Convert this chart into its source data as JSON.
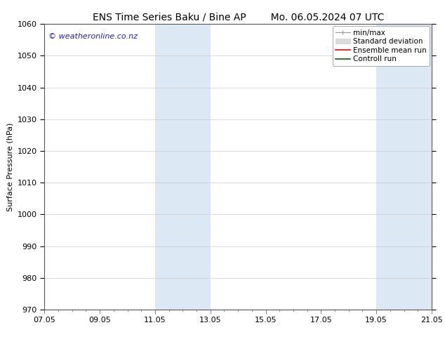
{
  "title_left": "ENS Time Series Baku / Bine AP",
  "title_right": "Mo. 06.05.2024 07 UTC",
  "ylabel": "Surface Pressure (hPa)",
  "ylim": [
    970,
    1060
  ],
  "yticks": [
    970,
    980,
    990,
    1000,
    1010,
    1020,
    1030,
    1040,
    1050,
    1060
  ],
  "xtick_labels": [
    "07.05",
    "09.05",
    "11.05",
    "13.05",
    "15.05",
    "17.05",
    "19.05",
    "21.05"
  ],
  "xtick_positions": [
    0,
    2,
    4,
    6,
    8,
    10,
    12,
    14
  ],
  "shaded_regions": [
    {
      "xstart": 4,
      "xend": 6
    },
    {
      "xstart": 12,
      "xend": 14
    }
  ],
  "shaded_color": "#dce9f5",
  "watermark": "© weatheronline.co.nz",
  "watermark_color": "#1a1aff",
  "bg_color": "#ffffff",
  "plot_bg_color": "#ffffff",
  "grid_color": "#cccccc",
  "legend_entries": [
    {
      "label": "min/max",
      "color": "#aaaaaa"
    },
    {
      "label": "Standard deviation",
      "color": "#cccccc"
    },
    {
      "label": "Ensemble mean run",
      "color": "#ff0000"
    },
    {
      "label": "Controll run",
      "color": "#006600"
    }
  ],
  "title_fontsize": 10,
  "axis_label_fontsize": 8,
  "tick_fontsize": 8,
  "legend_fontsize": 7.5,
  "watermark_fontsize": 8
}
